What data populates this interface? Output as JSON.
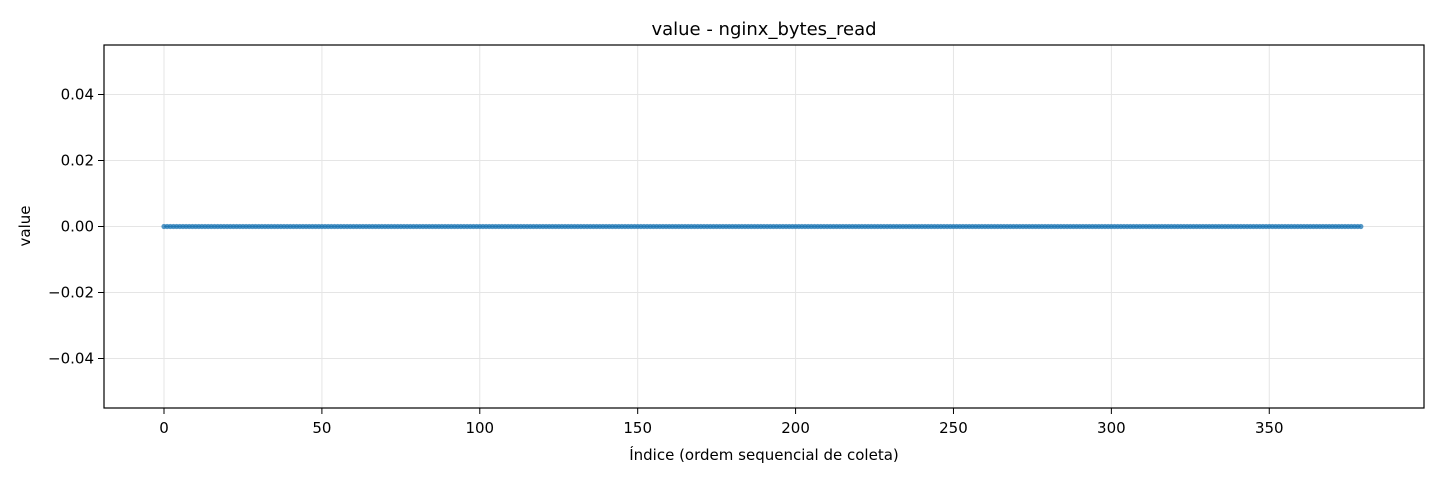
{
  "chart_data": {
    "type": "line",
    "title": "value - nginx_bytes_read",
    "xlabel": "Índice (ordem sequencial de coleta)",
    "ylabel": "value",
    "xlim": [
      -19,
      399
    ],
    "ylim": [
      -0.055,
      0.055
    ],
    "x_ticks": [
      0,
      50,
      100,
      150,
      200,
      250,
      300,
      350
    ],
    "x_tick_labels": [
      "0",
      "50",
      "100",
      "150",
      "200",
      "250",
      "300",
      "350"
    ],
    "y_ticks": [
      0.04,
      0.02,
      0.0,
      -0.02,
      -0.04
    ],
    "y_tick_labels": [
      "0.04",
      "0.02",
      "0.00",
      "−0.02",
      "−0.04"
    ],
    "grid": true,
    "series": [
      {
        "x_start": 0,
        "x_end": 379,
        "x_step": 1,
        "y_constant": 0,
        "color": "#1f77b4",
        "marker": "circle"
      }
    ]
  }
}
